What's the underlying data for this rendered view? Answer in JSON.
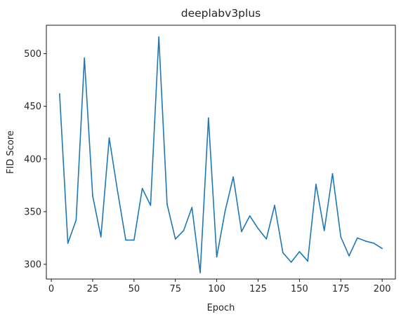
{
  "chart_data": {
    "type": "line",
    "title": "deeplabv3plus",
    "xlabel": "Epoch",
    "ylabel": "FID Score",
    "xlim": [
      -3,
      208
    ],
    "ylim": [
      286,
      527
    ],
    "xticks": [
      0,
      25,
      50,
      75,
      100,
      125,
      150,
      175,
      200
    ],
    "yticks": [
      300,
      350,
      400,
      450,
      500
    ],
    "grid": false,
    "colors": {
      "line": "#1f77b4",
      "axes": "#000000",
      "text": "#262626"
    },
    "series": [
      {
        "x": [
          5,
          10,
          15,
          20,
          25,
          30,
          35,
          40,
          45,
          50,
          55,
          60,
          65,
          70,
          75,
          80,
          85,
          90,
          95,
          100,
          105,
          110,
          115,
          120,
          125,
          130,
          135,
          140,
          145,
          150,
          155,
          160,
          165,
          170,
          175,
          180,
          185,
          190,
          195,
          200
        ],
        "values": [
          462,
          320,
          342,
          496,
          365,
          326,
          420,
          370,
          323,
          323,
          372,
          356,
          516,
          357,
          324,
          332,
          354,
          292,
          439,
          307,
          350,
          383,
          331,
          346,
          334,
          324,
          356,
          311,
          302,
          312,
          303,
          376,
          332,
          386,
          326,
          308,
          325,
          322,
          320,
          315
        ]
      }
    ]
  }
}
